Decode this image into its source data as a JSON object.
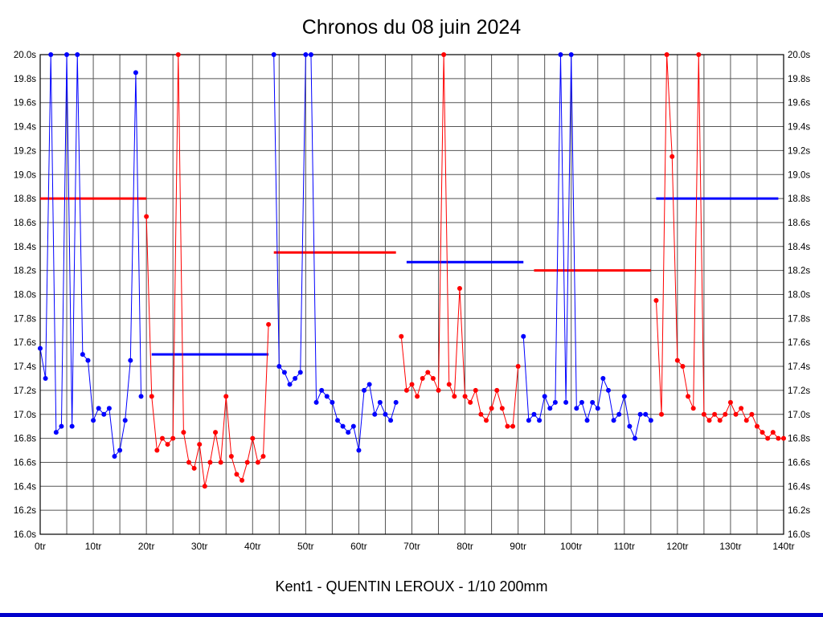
{
  "window": {
    "background": "#ffffff",
    "bottom_bar_color": "#0000cc"
  },
  "chart_data": {
    "type": "line",
    "title": "Chronos du 08 juin 2024",
    "subtitle": "Kent1 - QUENTIN LEROUX - 1/10 200mm",
    "x_unit": "tr",
    "y_unit": "s",
    "xlim": [
      0,
      140
    ],
    "ylim": [
      16.0,
      20.0
    ],
    "x_tick_step": 10,
    "x_grid_step": 5,
    "y_tick_step": 0.2,
    "grid": true,
    "grid_color": "#555555",
    "axis_color": "#000000",
    "series": [
      {
        "name": "run-1-blue",
        "color": "#0000ff",
        "start_x": 0,
        "values": [
          17.55,
          17.3,
          20.0,
          16.85,
          16.9,
          20.0,
          16.9,
          20.0,
          17.5,
          17.45,
          16.95,
          17.05,
          17.0,
          17.05,
          16.65,
          16.7,
          16.95,
          17.45,
          19.85,
          17.15
        ]
      },
      {
        "name": "run-2-red",
        "color": "#ff0000",
        "start_x": 20,
        "values": [
          18.65,
          17.15,
          16.7,
          16.8,
          16.75,
          16.8,
          20.0,
          16.85,
          16.6,
          16.55,
          16.75,
          16.4,
          16.6,
          16.85,
          16.6,
          17.15,
          16.65,
          16.5,
          16.45,
          16.6,
          16.8,
          16.6,
          16.65,
          17.75
        ]
      },
      {
        "name": "run-3-blue",
        "color": "#0000ff",
        "start_x": 44,
        "values": [
          20.0,
          17.4,
          17.35,
          17.25,
          17.3,
          17.35,
          20.0,
          20.0,
          17.1,
          17.2,
          17.15,
          17.1,
          16.95,
          16.9,
          16.85,
          16.9,
          16.7,
          17.2,
          17.25,
          17.0,
          17.1,
          17.0,
          16.95,
          17.1
        ]
      },
      {
        "name": "run-4-red",
        "color": "#ff0000",
        "start_x": 68,
        "values": [
          17.65,
          17.2,
          17.25,
          17.15,
          17.3,
          17.35,
          17.3,
          17.2,
          20.0,
          17.25,
          17.15,
          18.05,
          17.15,
          17.1,
          17.2,
          17.0,
          16.95,
          17.05,
          17.2,
          17.05,
          16.9,
          16.9,
          17.4
        ]
      },
      {
        "name": "run-5-blue",
        "color": "#0000ff",
        "start_x": 91,
        "values": [
          17.65,
          16.95,
          17.0,
          16.95,
          17.15,
          17.05,
          17.1,
          20.0,
          17.1,
          20.0,
          17.05,
          17.1,
          16.95,
          17.1,
          17.05,
          17.3,
          17.2,
          16.95,
          17.0,
          17.15,
          16.9,
          16.8,
          17.0,
          17.0,
          16.95
        ]
      },
      {
        "name": "run-6-red",
        "color": "#ff0000",
        "start_x": 116,
        "values": [
          17.95,
          17.0,
          20.0,
          19.15,
          17.45,
          17.4,
          17.15,
          17.05,
          20.0,
          17.0,
          16.95,
          17.0,
          16.95,
          17.0,
          17.1,
          17.0,
          17.05,
          16.95,
          17.0,
          16.9,
          16.85,
          16.8,
          16.85,
          16.8,
          16.8
        ]
      }
    ],
    "average_lines": [
      {
        "color": "#ff0000",
        "y": 18.8,
        "x1": 0,
        "x2": 20
      },
      {
        "color": "#0000ff",
        "y": 17.5,
        "x1": 21,
        "x2": 43
      },
      {
        "color": "#ff0000",
        "y": 18.35,
        "x1": 44,
        "x2": 67
      },
      {
        "color": "#0000ff",
        "y": 18.27,
        "x1": 69,
        "x2": 91
      },
      {
        "color": "#ff0000",
        "y": 18.2,
        "x1": 93,
        "x2": 115
      },
      {
        "color": "#0000ff",
        "y": 18.8,
        "x1": 116,
        "x2": 139
      }
    ]
  }
}
